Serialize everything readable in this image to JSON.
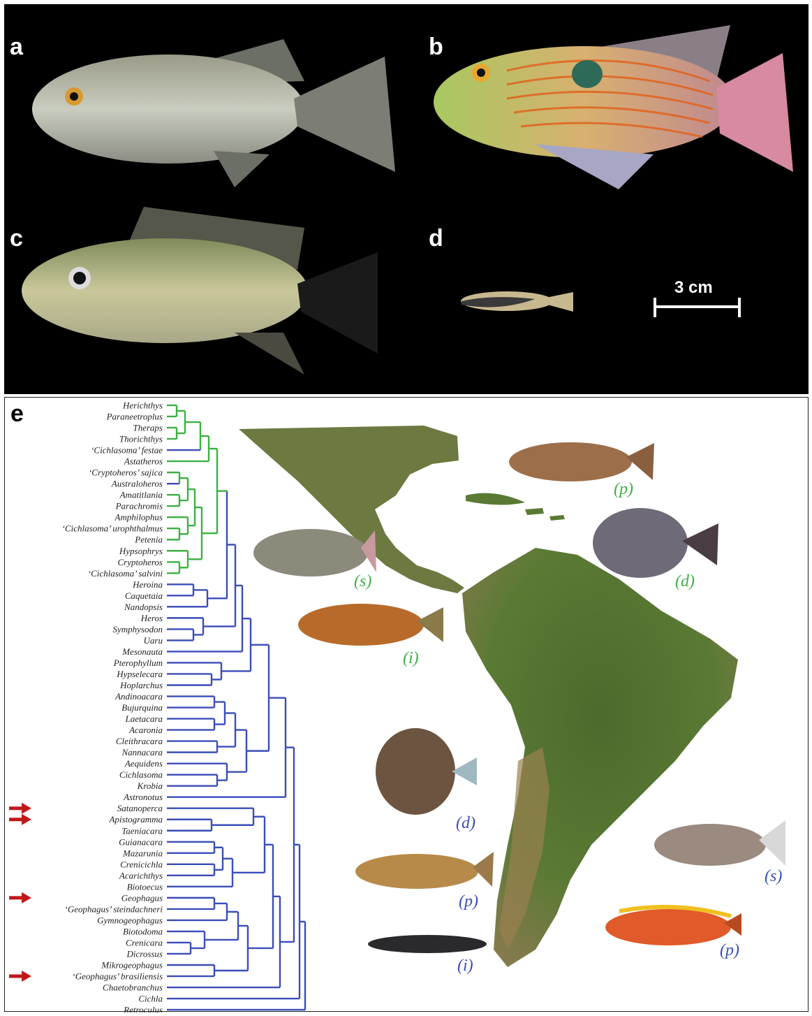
{
  "panels": {
    "a": "a",
    "b": "b",
    "c": "c",
    "d": "d",
    "e": "e",
    "scale_bar": "3 cm"
  },
  "colors": {
    "central_american_clade": "#3cb043",
    "south_american_clade": "#3a4db8",
    "arrow": "#c0181a",
    "background_top": "#000000"
  },
  "tree": {
    "taxa": [
      {
        "name": "Herichthys",
        "clade": "green"
      },
      {
        "name": "Paraneetroplus",
        "clade": "green"
      },
      {
        "name": "Theraps",
        "clade": "green"
      },
      {
        "name": "Thorichthys",
        "clade": "green"
      },
      {
        "name": "‘Cichlasoma’ festae",
        "clade": "blue"
      },
      {
        "name": "Astatheros",
        "clade": "green"
      },
      {
        "name": "‘Cryptoheros’ sajica",
        "clade": "green"
      },
      {
        "name": "Australoheros",
        "clade": "blue"
      },
      {
        "name": "Amatitlania",
        "clade": "green"
      },
      {
        "name": "Parachromis",
        "clade": "green"
      },
      {
        "name": "Amphilophus",
        "clade": "green"
      },
      {
        "name": "‘Cichlasoma’ urophthalmus",
        "clade": "green"
      },
      {
        "name": "Petenia",
        "clade": "green"
      },
      {
        "name": "Hypsophrys",
        "clade": "green"
      },
      {
        "name": "Cryptoheros",
        "clade": "green"
      },
      {
        "name": "‘Cichlasoma’ salvini",
        "clade": "green"
      },
      {
        "name": "Heroina",
        "clade": "blue"
      },
      {
        "name": "Caquetaia",
        "clade": "blue"
      },
      {
        "name": "Nandopsis",
        "clade": "blue"
      },
      {
        "name": "Heros",
        "clade": "blue"
      },
      {
        "name": "Symphysodon",
        "clade": "blue"
      },
      {
        "name": "Uaru",
        "clade": "blue"
      },
      {
        "name": "Mesonauta",
        "clade": "blue"
      },
      {
        "name": "Pterophyllum",
        "clade": "blue"
      },
      {
        "name": "Hypselecara",
        "clade": "blue"
      },
      {
        "name": "Hoplarchus",
        "clade": "blue"
      },
      {
        "name": "Andinoacara",
        "clade": "blue"
      },
      {
        "name": "Bujurquina",
        "clade": "blue"
      },
      {
        "name": "Laetacara",
        "clade": "blue"
      },
      {
        "name": "Acaronia",
        "clade": "blue"
      },
      {
        "name": "Cleithracara",
        "clade": "blue"
      },
      {
        "name": "Nannacara",
        "clade": "blue"
      },
      {
        "name": "Aequidens",
        "clade": "blue"
      },
      {
        "name": "Cichlasoma",
        "clade": "blue"
      },
      {
        "name": "Krobia",
        "clade": "blue"
      },
      {
        "name": "Astronotus",
        "clade": "blue"
      },
      {
        "name": "Satanoperca",
        "clade": "blue",
        "arrow": true
      },
      {
        "name": "Apistogramma",
        "clade": "blue",
        "arrow": true
      },
      {
        "name": "Taeniacara",
        "clade": "blue"
      },
      {
        "name": "Guianacara",
        "clade": "blue"
      },
      {
        "name": "Mazarunia",
        "clade": "blue"
      },
      {
        "name": "Crenicichla",
        "clade": "blue"
      },
      {
        "name": "Acarichthys",
        "clade": "blue"
      },
      {
        "name": "Biotoecus",
        "clade": "blue"
      },
      {
        "name": "Geophagus",
        "clade": "blue",
        "arrow": true
      },
      {
        "name": "‘Geophagus’ steindachneri",
        "clade": "blue"
      },
      {
        "name": "Gymnogeophagus",
        "clade": "blue"
      },
      {
        "name": "Biotodoma",
        "clade": "blue"
      },
      {
        "name": "Crenicara",
        "clade": "blue"
      },
      {
        "name": "Dicrossus",
        "clade": "blue"
      },
      {
        "name": "Mikrogeophagus",
        "clade": "blue"
      },
      {
        "name": "‘Geophagus’ brasiliensis",
        "clade": "blue",
        "arrow": true
      },
      {
        "name": "Chaetobranchus",
        "clade": "blue"
      },
      {
        "name": "Cichla",
        "clade": "blue"
      },
      {
        "name": "Retroculus",
        "clade": "blue"
      }
    ]
  },
  "guild_labels": [
    {
      "id": "p-green",
      "text": "(p)",
      "clade": "green"
    },
    {
      "id": "d-green",
      "text": "(d)",
      "clade": "green"
    },
    {
      "id": "s-green",
      "text": "(s)",
      "clade": "green"
    },
    {
      "id": "i-green",
      "text": "(i)",
      "clade": "green"
    },
    {
      "id": "d-blue",
      "text": "(d)",
      "clade": "blue"
    },
    {
      "id": "s-blue",
      "text": "(s)",
      "clade": "blue"
    },
    {
      "id": "p-blue-1",
      "text": "(p)",
      "clade": "blue"
    },
    {
      "id": "p-blue-2",
      "text": "(p)",
      "clade": "blue"
    },
    {
      "id": "i-blue",
      "text": "(i)",
      "clade": "blue"
    }
  ]
}
